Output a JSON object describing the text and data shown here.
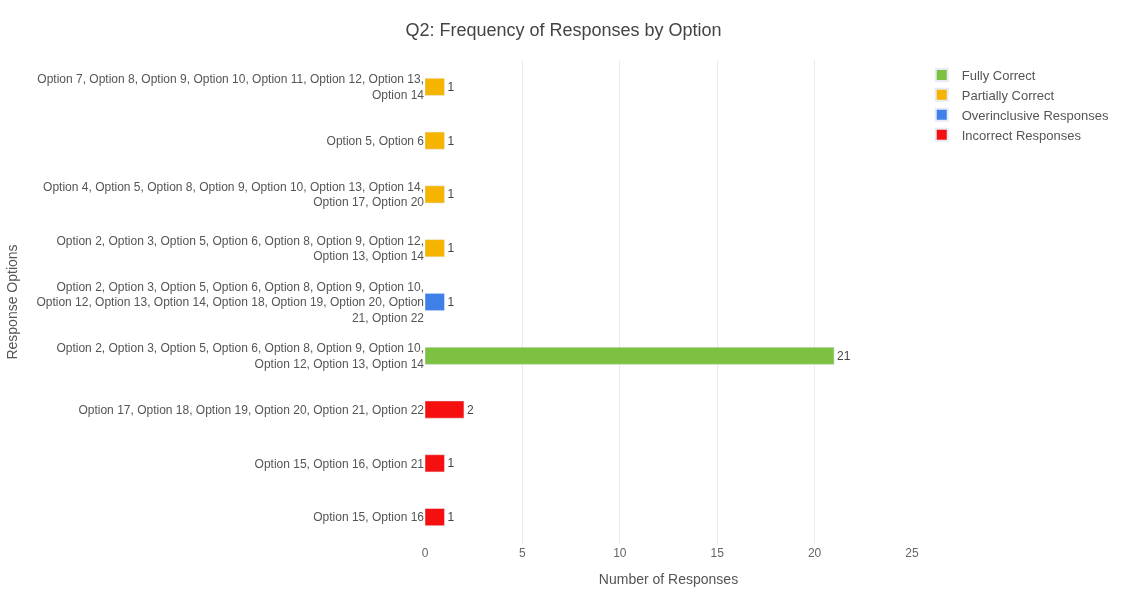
{
  "chart_data": {
    "type": "bar",
    "orientation": "horizontal",
    "title": "Q2: Frequency of Responses by Option",
    "xlabel": "Number of Responses",
    "ylabel": "Response Options",
    "categories": [
      "Option 7, Option 8, Option 9, Option 10, Option 11, Option 12, Option 13, Option 14",
      "Option 5, Option 6",
      "Option 4, Option 5, Option 8, Option 9, Option 10, Option 13, Option 14, Option 17, Option 20",
      "Option 2, Option 3, Option 5, Option 6, Option 8, Option 9, Option 12, Option 13, Option 14",
      "Option 2, Option 3, Option 5, Option 6, Option 8, Option 9, Option 10, Option 12, Option 13, Option 14, Option 18, Option 19, Option 20, Option 21, Option 22",
      "Option 2, Option 3, Option 5, Option 6, Option 8, Option 9, Option 10, Option 12, Option 13, Option 14",
      "Option 17, Option 18, Option 19, Option 20, Option 21, Option 22",
      "Option 15, Option 16, Option 21",
      "Option 15, Option 16"
    ],
    "series": [
      {
        "name": "Fully Correct",
        "color": "#7cc142",
        "values": [
          null,
          null,
          null,
          null,
          null,
          21,
          null,
          null,
          null
        ]
      },
      {
        "name": "Partially Correct",
        "color": "#f5b400",
        "values": [
          1,
          1,
          1,
          1,
          null,
          null,
          null,
          null,
          null
        ]
      },
      {
        "name": "Overinclusive Responses",
        "color": "#3f7fe8",
        "values": [
          null,
          null,
          null,
          null,
          1,
          null,
          null,
          null,
          null
        ]
      },
      {
        "name": "Incorrect Responses",
        "color": "#f50f0f",
        "values": [
          null,
          null,
          null,
          null,
          null,
          null,
          2,
          1,
          1
        ]
      }
    ],
    "xlim": [
      0,
      25
    ],
    "xticks": [
      0,
      5,
      10,
      15,
      20,
      25
    ],
    "grid": "x",
    "legend": "top right",
    "data_labels": true
  }
}
